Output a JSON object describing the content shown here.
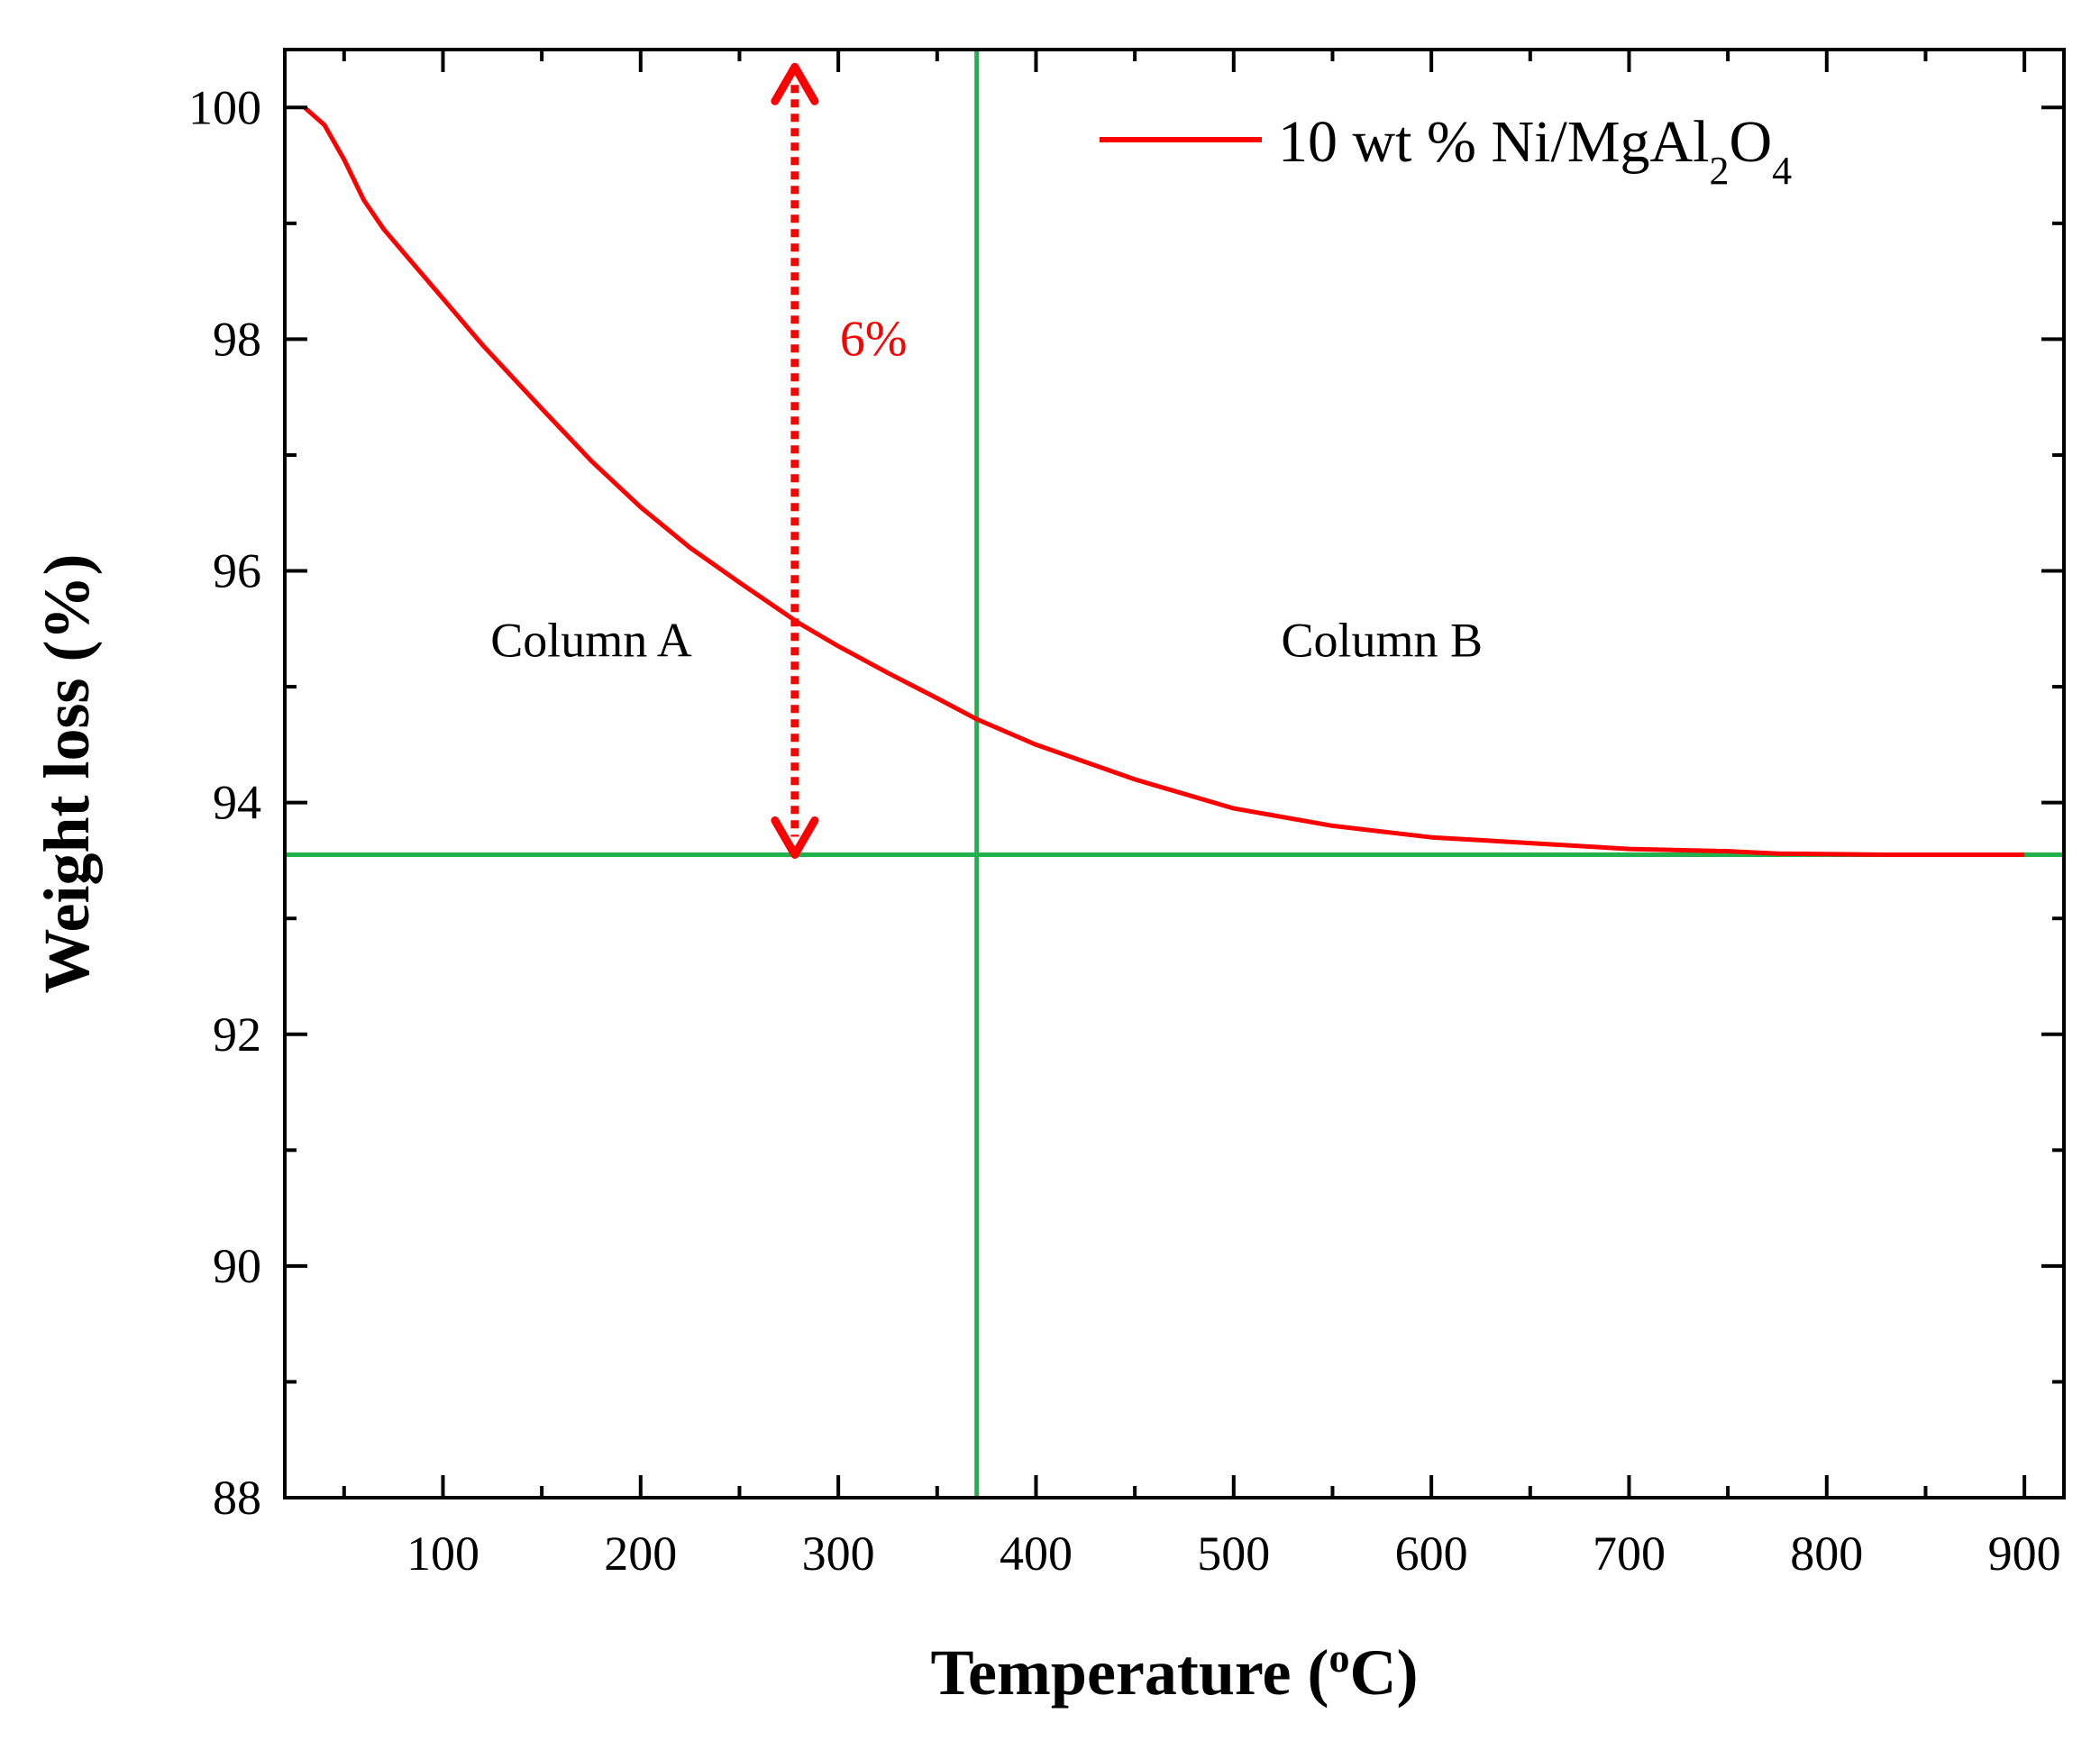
{
  "chart_data": {
    "type": "line",
    "title": "",
    "xlabel": "Temperature",
    "xlabel_unit": "(°C)",
    "xlabel_unit_parts": [
      "(",
      "o",
      "C)"
    ],
    "ylabel": "Weight loss (%)",
    "xlim": [
      20,
      920
    ],
    "ylim": [
      88,
      100.5
    ],
    "xticks": [
      100,
      200,
      300,
      400,
      500,
      600,
      700,
      800,
      900
    ],
    "yticks": [
      88,
      90,
      92,
      94,
      96,
      98,
      100
    ],
    "grid": false,
    "legend": {
      "position": "top-right",
      "entries": [
        {
          "name": "10 wt % Ni/MgAl2O4",
          "name_parts": [
            "10 wt % Ni/MgAl",
            "2",
            "O",
            "4"
          ],
          "color": "#ff0000"
        }
      ]
    },
    "series": [
      {
        "name": "10 wt % Ni/MgAl2O4",
        "color": "#ff0000",
        "x": [
          30,
          40,
          50,
          60,
          70,
          80,
          100,
          120,
          150,
          175,
          200,
          225,
          250,
          280,
          300,
          325,
          350,
          370,
          400,
          450,
          500,
          550,
          600,
          650,
          700,
          750,
          775,
          830,
          900
        ],
        "y": [
          100.0,
          99.85,
          99.55,
          99.2,
          98.95,
          98.75,
          98.35,
          97.95,
          97.4,
          96.95,
          96.55,
          96.2,
          95.9,
          95.55,
          95.35,
          95.12,
          94.9,
          94.72,
          94.5,
          94.2,
          93.95,
          93.8,
          93.7,
          93.65,
          93.6,
          93.58,
          93.56,
          93.55,
          93.55
        ]
      }
    ],
    "reference_lines": [
      {
        "orientation": "vertical",
        "value": 370,
        "color": "#22b14c"
      },
      {
        "orientation": "horizontal",
        "value": 93.55,
        "color": "#22b14c"
      }
    ],
    "annotations": [
      {
        "type": "double-arrow",
        "x": 278,
        "y_from": 93.55,
        "y_to": 100.35,
        "color": "#ff0000",
        "label": "6%"
      }
    ],
    "regions": [
      {
        "label": "Column A",
        "x": 175,
        "y": 95.4
      },
      {
        "label": "Column B",
        "x": 575,
        "y": 95.4
      }
    ]
  }
}
